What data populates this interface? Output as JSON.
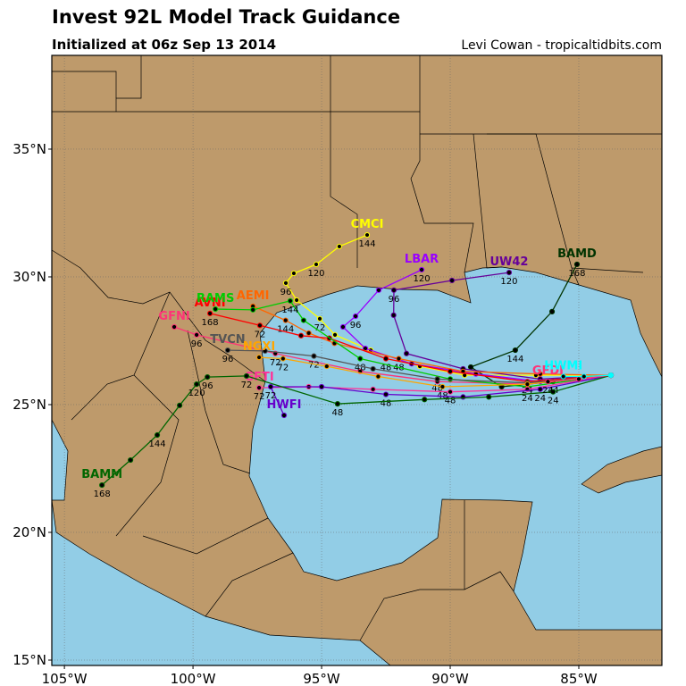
{
  "header": {
    "title": "Invest 92L Model Track Guidance",
    "subtitle": "Initialized at 06z Sep 13 2014",
    "credit": "Levi Cowan - tropicaltidbits.com"
  },
  "map": {
    "xlim": [
      -105.49,
      -81.77
    ],
    "ylim": [
      14.79,
      38.67
    ],
    "grid": true,
    "xticks": [
      {
        "value": -105,
        "label": "105°W"
      },
      {
        "value": -100,
        "label": "100°W"
      },
      {
        "value": -95,
        "label": "95°W"
      },
      {
        "value": -90,
        "label": "90°W"
      },
      {
        "value": -85,
        "label": "85°W"
      }
    ],
    "yticks": [
      {
        "value": 15,
        "label": "15°N"
      },
      {
        "value": 20,
        "label": "20°N"
      },
      {
        "value": 25,
        "label": "25°N"
      },
      {
        "value": 30,
        "label": "30°N"
      },
      {
        "value": 35,
        "label": "35°N"
      }
    ]
  },
  "tracks": [
    {
      "name": "CMCI",
      "color": "#ffff00",
      "lon": [
        -83.75,
        -86.67,
        -89.44,
        -91.18,
        -93.09,
        -94.48,
        -95.07,
        -95.97,
        -96.39,
        -96.08,
        -95.21,
        -94.31,
        -93.23
      ],
      "lat": [
        26.15,
        26.15,
        26.15,
        26.5,
        27.13,
        27.73,
        28.36,
        29.09,
        29.76,
        30.14,
        30.49,
        31.19,
        31.64
      ],
      "hours": [
        null,
        null,
        null,
        null,
        null,
        null,
        "72",
        null,
        "96",
        null,
        "120",
        null,
        "144"
      ]
    },
    {
      "name": "BAMD",
      "color": "#003300",
      "lon": [
        -83.75,
        -86.0,
        -88.0,
        -89.2,
        -87.47,
        -86.04,
        -85.07
      ],
      "lat": [
        26.15,
        25.9,
        25.7,
        26.47,
        27.13,
        28.64,
        30.49
      ],
      "hours": [
        null,
        "24",
        null,
        null,
        "144",
        null,
        "168"
      ]
    },
    {
      "name": "UW42",
      "color": "#660099",
      "lon": [
        -83.75,
        -86.5,
        -89.5,
        -91.7,
        -92.2,
        -92.19,
        -89.93,
        -87.71
      ],
      "lat": [
        26.15,
        26.0,
        26.4,
        27.0,
        28.5,
        29.48,
        29.86,
        30.17
      ],
      "hours": [
        null,
        null,
        null,
        null,
        null,
        "96",
        null,
        "120"
      ]
    },
    {
      "name": "LBAR",
      "color": "#9900ff",
      "lon": [
        -83.75,
        -86.5,
        -89.0,
        -91.5,
        -93.3,
        -94.17,
        -93.68,
        -92.78,
        -91.11
      ],
      "lat": [
        26.15,
        25.9,
        26.2,
        26.6,
        27.2,
        28.04,
        28.46,
        29.48,
        30.28
      ],
      "hours": [
        null,
        null,
        null,
        null,
        null,
        null,
        "96",
        null,
        "120"
      ]
    },
    {
      "name": "AEMI",
      "color": "#ff6600",
      "lon": [
        -83.75,
        -86.5,
        -89.5,
        -92.0,
        -94.5,
        -95.5,
        -96.4,
        -97.67
      ],
      "lat": [
        26.15,
        26.2,
        26.3,
        26.8,
        27.4,
        27.8,
        28.3,
        28.85
      ],
      "hours": [
        null,
        null,
        null,
        "48",
        null,
        null,
        "144",
        null
      ]
    },
    {
      "name": "AVNI",
      "color": "#ff0000",
      "lon": [
        -83.75,
        -87.0,
        -90.0,
        -92.5,
        -94.7,
        -95.8,
        -97.4,
        -99.34
      ],
      "lat": [
        26.15,
        25.9,
        26.3,
        26.8,
        27.6,
        27.7,
        28.1,
        28.57
      ],
      "hours": [
        null,
        "24",
        null,
        "48",
        null,
        null,
        "72",
        "168"
      ]
    },
    {
      "name": "GFNI",
      "color": "#ff3377",
      "lon": [
        -83.75,
        -87.0,
        -90.5,
        -93.5,
        -96.8,
        -99.86,
        -100.73
      ],
      "lat": [
        26.15,
        25.8,
        25.9,
        26.3,
        27.0,
        27.73,
        28.04
      ],
      "hours": [
        null,
        null,
        null,
        null,
        "72",
        "96",
        null
      ]
    },
    {
      "name": "RAMS",
      "color": "#00cc00",
      "lon": [
        -83.75,
        -87.0,
        -90.0,
        -93.5,
        -95.7,
        -96.22,
        -97.67,
        -99.13
      ],
      "lat": [
        26.15,
        25.7,
        26.0,
        26.8,
        28.3,
        29.06,
        28.71,
        28.74
      ],
      "hours": [
        null,
        null,
        null,
        "48",
        null,
        "144",
        null,
        null
      ]
    },
    {
      "name": "TVCN",
      "color": "#555555",
      "lon": [
        -83.75,
        -87.0,
        -90.5,
        -93.0,
        -95.3,
        -97.2,
        -98.65
      ],
      "lat": [
        26.15,
        25.85,
        26.0,
        26.4,
        26.9,
        27.1,
        27.13
      ],
      "hours": [
        null,
        null,
        "48",
        null,
        "72",
        null,
        "96"
      ]
    },
    {
      "name": "NGXI",
      "color": "#ffa500",
      "lon": [
        -83.75,
        -87.0,
        -90.3,
        -92.8,
        -94.8,
        -96.5,
        -97.43
      ],
      "lat": [
        26.15,
        25.8,
        25.7,
        26.1,
        26.5,
        26.8,
        26.85
      ],
      "hours": [
        null,
        null,
        "48",
        null,
        null,
        "72",
        null
      ]
    },
    {
      "name": "GFTI",
      "color": "#ff3399",
      "lon": [
        -83.75,
        -87.0,
        -90.0,
        -93.0,
        -95.5,
        -97.43
      ],
      "lat": [
        26.15,
        25.6,
        25.5,
        25.6,
        25.7,
        25.66
      ],
      "hours": [
        null,
        "24",
        "48",
        null,
        null,
        "72"
      ]
    },
    {
      "name": "HWFI",
      "color": "#6600cc",
      "lon": [
        -83.75,
        -86.5,
        -89.5,
        -92.5,
        -95.0,
        -96.98,
        -96.46
      ],
      "lat": [
        26.15,
        25.6,
        25.3,
        25.4,
        25.7,
        25.7,
        24.58
      ],
      "hours": [
        null,
        "24",
        null,
        "48",
        null,
        "72",
        null
      ]
    },
    {
      "name": "BAMM",
      "color": "#006600",
      "lon": [
        -83.75,
        -86.0,
        -88.5,
        -91.0,
        -94.38,
        -97.92,
        -99.44,
        -99.86,
        -100.52,
        -101.39,
        -102.43,
        -103.54
      ],
      "lat": [
        26.15,
        25.5,
        25.3,
        25.2,
        25.03,
        26.12,
        26.08,
        25.8,
        24.97,
        23.81,
        22.83,
        21.85
      ],
      "hours": [
        null,
        "24",
        null,
        null,
        "48",
        "72",
        "96",
        "120",
        null,
        "144",
        null,
        "168"
      ]
    },
    {
      "name": "GFDI",
      "color": "#ff3377",
      "lon": [
        -83.75,
        -85.0,
        -86.2
      ],
      "lat": [
        26.15,
        26.0,
        25.9
      ],
      "hours": [
        null,
        null,
        "24"
      ]
    },
    {
      "name": "HWMI",
      "color": "#00ffff",
      "lon": [
        -83.75,
        -84.8,
        -85.6
      ],
      "lat": [
        26.15,
        26.1,
        26.1
      ],
      "hours": [
        null,
        null,
        null
      ]
    }
  ]
}
